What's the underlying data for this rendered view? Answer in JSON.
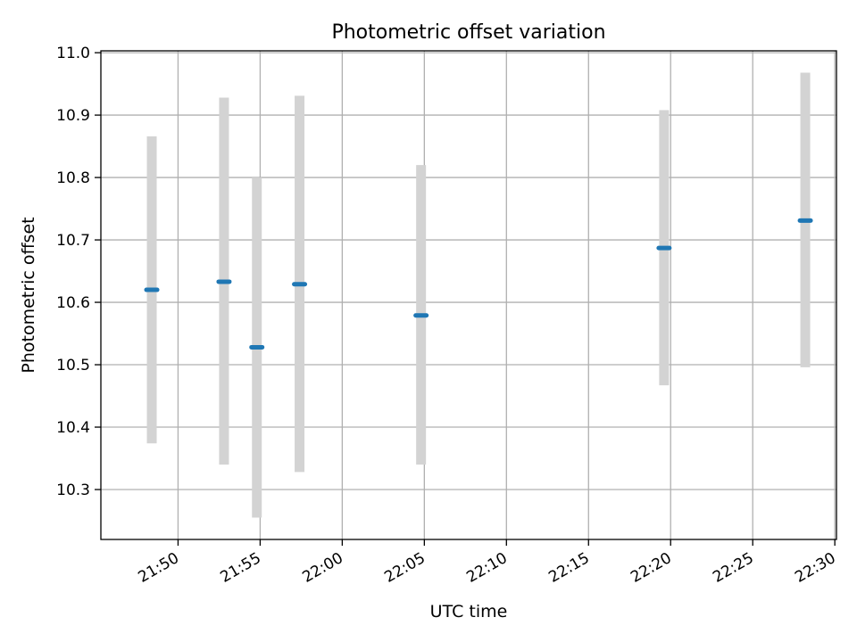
{
  "chart_data": {
    "type": "scatter",
    "title": "Photometric offset variation",
    "xlabel": "UTC time",
    "ylabel": "Photometric offset",
    "x_tick_labels": [
      "21:50",
      "21:55",
      "22:00",
      "22:05",
      "22:10",
      "22:15",
      "22:20",
      "22:25",
      "22:30"
    ],
    "y_tick_labels": [
      "10.3",
      "10.4",
      "10.5",
      "10.6",
      "10.7",
      "10.8",
      "10.9",
      "11.0"
    ],
    "xlim": [
      "21:45:18",
      "22:30:06"
    ],
    "ylim": [
      10.22,
      11.003
    ],
    "grid": true,
    "series": [
      {
        "points": [
          {
            "x": "21:48:24",
            "y": 10.62,
            "ylow": 10.374,
            "yhigh": 10.866
          },
          {
            "x": "21:52:48",
            "y": 10.633,
            "ylow": 10.34,
            "yhigh": 10.928
          },
          {
            "x": "21:54:48",
            "y": 10.528,
            "ylow": 10.255,
            "yhigh": 10.8
          },
          {
            "x": "21:57:24",
            "y": 10.629,
            "ylow": 10.328,
            "yhigh": 10.931
          },
          {
            "x": "22:04:48",
            "y": 10.579,
            "ylow": 10.34,
            "yhigh": 10.82
          },
          {
            "x": "22:19:36",
            "y": 10.687,
            "ylow": 10.467,
            "yhigh": 10.908
          },
          {
            "x": "22:28:12",
            "y": 10.731,
            "ylow": 10.496,
            "yhigh": 10.968
          }
        ]
      }
    ],
    "colors": {
      "marker": "#1f77b4",
      "errorbar": "#d3d3d3",
      "grid": "#b0b0b0"
    }
  }
}
